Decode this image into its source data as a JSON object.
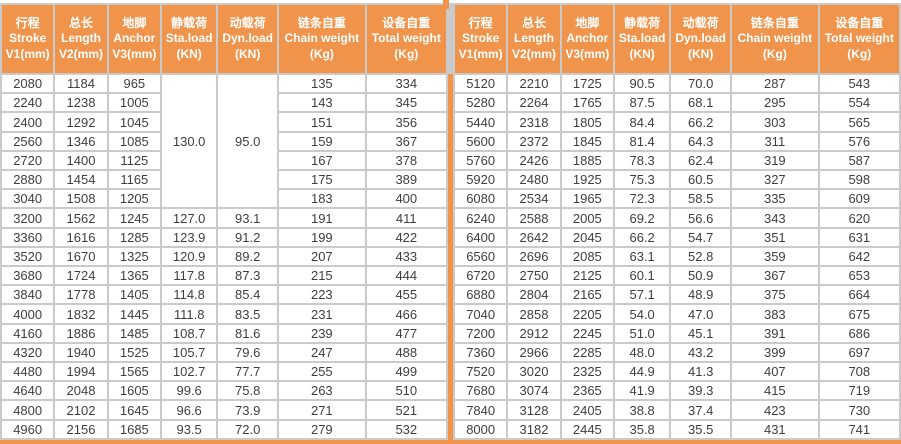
{
  "colors": {
    "accent_orange": "#F0944C",
    "grid_line": "#CACACA",
    "cell_text": "#3E3E3E",
    "header_text": "#FFFFFF",
    "cell_bg": "#FFFFFF"
  },
  "table": {
    "headers": [
      {
        "key": "stroke",
        "zh": "行程",
        "en": "Stroke",
        "unit": "V1(mm)"
      },
      {
        "key": "length",
        "zh": "总长",
        "en": "Length",
        "unit": "V2(mm)"
      },
      {
        "key": "anchor",
        "zh": "地脚",
        "en": "Anchor",
        "unit": "V3(mm)"
      },
      {
        "key": "sta-load",
        "zh": "静载荷",
        "en": "Sta.load",
        "unit": "(KN)"
      },
      {
        "key": "dyn-load",
        "zh": "动载荷",
        "en": "Dyn.load",
        "unit": "(KN)"
      },
      {
        "key": "chain-weight",
        "zh": "链条自重",
        "en": "Chain weight",
        "unit": "(Kg)"
      },
      {
        "key": "total-weight",
        "zh": "设备自重",
        "en": "Total weight",
        "unit": "(Kg)"
      }
    ],
    "sections": [
      {
        "side": "left",
        "merges": [
          {
            "row": 0,
            "col": 3,
            "rowspan": 7
          },
          {
            "row": 0,
            "col": 4,
            "rowspan": 7
          }
        ],
        "rows": [
          [
            "2080",
            "1184",
            "965",
            "130.0",
            "95.0",
            "135",
            "334"
          ],
          [
            "2240",
            "1238",
            "1005",
            null,
            null,
            "143",
            "345"
          ],
          [
            "2400",
            "1292",
            "1045",
            null,
            null,
            "151",
            "356"
          ],
          [
            "2560",
            "1346",
            "1085",
            null,
            null,
            "159",
            "367"
          ],
          [
            "2720",
            "1400",
            "1125",
            null,
            null,
            "167",
            "378"
          ],
          [
            "2880",
            "1454",
            "1165",
            null,
            null,
            "175",
            "389"
          ],
          [
            "3040",
            "1508",
            "1205",
            null,
            null,
            "183",
            "400"
          ],
          [
            "3200",
            "1562",
            "1245",
            "127.0",
            "93.1",
            "191",
            "411"
          ],
          [
            "3360",
            "1616",
            "1285",
            "123.9",
            "91.2",
            "199",
            "422"
          ],
          [
            "3520",
            "1670",
            "1325",
            "120.9",
            "89.2",
            "207",
            "433"
          ],
          [
            "3680",
            "1724",
            "1365",
            "117.8",
            "87.3",
            "215",
            "444"
          ],
          [
            "3840",
            "1778",
            "1405",
            "114.8",
            "85.4",
            "223",
            "455"
          ],
          [
            "4000",
            "1832",
            "1445",
            "111.8",
            "83.5",
            "231",
            "466"
          ],
          [
            "4160",
            "1886",
            "1485",
            "108.7",
            "81.6",
            "239",
            "477"
          ],
          [
            "4320",
            "1940",
            "1525",
            "105.7",
            "79.6",
            "247",
            "488"
          ],
          [
            "4480",
            "1994",
            "1565",
            "102.7",
            "77.7",
            "255",
            "499"
          ],
          [
            "4640",
            "2048",
            "1605",
            "99.6",
            "75.8",
            "263",
            "510"
          ],
          [
            "4800",
            "2102",
            "1645",
            "96.6",
            "73.9",
            "271",
            "521"
          ],
          [
            "4960",
            "2156",
            "1685",
            "93.5",
            "72.0",
            "279",
            "532"
          ]
        ]
      },
      {
        "side": "right",
        "merges": [],
        "rows": [
          [
            "5120",
            "2210",
            "1725",
            "90.5",
            "70.0",
            "287",
            "543"
          ],
          [
            "5280",
            "2264",
            "1765",
            "87.5",
            "68.1",
            "295",
            "554"
          ],
          [
            "5440",
            "2318",
            "1805",
            "84.4",
            "66.2",
            "303",
            "565"
          ],
          [
            "5600",
            "2372",
            "1845",
            "81.4",
            "64.3",
            "311",
            "576"
          ],
          [
            "5760",
            "2426",
            "1885",
            "78.3",
            "62.4",
            "319",
            "587"
          ],
          [
            "5920",
            "2480",
            "1925",
            "75.3",
            "60.5",
            "327",
            "598"
          ],
          [
            "6080",
            "2534",
            "1965",
            "72.3",
            "58.5",
            "335",
            "609"
          ],
          [
            "6240",
            "2588",
            "2005",
            "69.2",
            "56.6",
            "343",
            "620"
          ],
          [
            "6400",
            "2642",
            "2045",
            "66.2",
            "54.7",
            "351",
            "631"
          ],
          [
            "6560",
            "2696",
            "2085",
            "63.1",
            "52.8",
            "359",
            "642"
          ],
          [
            "6720",
            "2750",
            "2125",
            "60.1",
            "50.9",
            "367",
            "653"
          ],
          [
            "6880",
            "2804",
            "2165",
            "57.1",
            "48.9",
            "375",
            "664"
          ],
          [
            "7040",
            "2858",
            "2205",
            "54.0",
            "47.0",
            "383",
            "675"
          ],
          [
            "7200",
            "2912",
            "2245",
            "51.0",
            "45.1",
            "391",
            "686"
          ],
          [
            "7360",
            "2966",
            "2285",
            "48.0",
            "43.2",
            "399",
            "697"
          ],
          [
            "7520",
            "3020",
            "2325",
            "44.9",
            "41.3",
            "407",
            "708"
          ],
          [
            "7680",
            "3074",
            "2365",
            "41.9",
            "39.3",
            "415",
            "719"
          ],
          [
            "7840",
            "3128",
            "2405",
            "38.8",
            "37.4",
            "423",
            "730"
          ],
          [
            "8000",
            "3182",
            "2445",
            "35.8",
            "35.5",
            "431",
            "741"
          ]
        ]
      }
    ]
  }
}
